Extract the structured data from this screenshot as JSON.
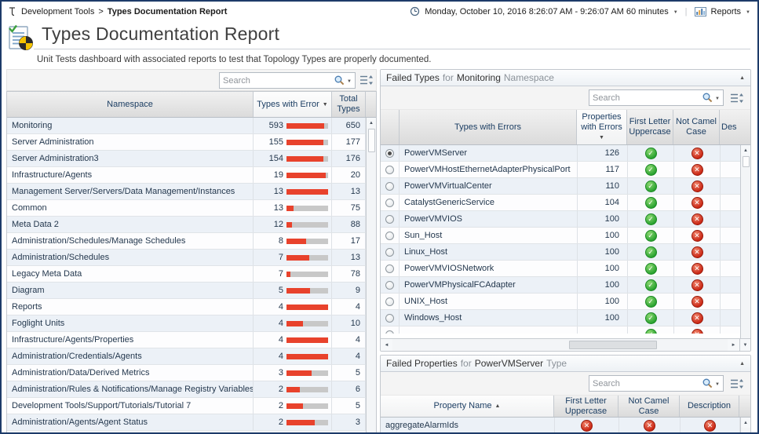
{
  "topbar": {
    "breadcrumb": {
      "parent": "Development Tools",
      "separator": ">",
      "current": "Types Documentation Report"
    },
    "time_range_label": "Monday, October 10, 2016 8:26:07 AM - 9:26:07 AM 60 minutes",
    "reports_label": "Reports"
  },
  "header": {
    "title": "Types Documentation Report",
    "subtitle": "Unit Tests dashboard with associated reports to test that Topology Types are properly documented."
  },
  "status_glyphs": {
    "pass": "✓",
    "fail": "✕"
  },
  "status_colors": {
    "pass": "#27a12e",
    "fail": "#c92513"
  },
  "namespaces_table": {
    "search": {
      "placeholder": "Search"
    },
    "columns": [
      {
        "label": "Namespace",
        "sort": null
      },
      {
        "label": "Types with Error",
        "sort": "desc"
      },
      {
        "label": "Total Types",
        "sort": null
      }
    ],
    "bar_color": "#e8422c",
    "bar_track_color": "#c8c8c8",
    "rows": [
      {
        "namespace": "Monitoring",
        "types_with_error": 593,
        "total_types": 650
      },
      {
        "namespace": "Server Administration",
        "types_with_error": 155,
        "total_types": 177
      },
      {
        "namespace": "Server Administration3",
        "types_with_error": 154,
        "total_types": 176
      },
      {
        "namespace": "Infrastructure/Agents",
        "types_with_error": 19,
        "total_types": 20
      },
      {
        "namespace": "Management Server/Servers/Data Management/Instances",
        "types_with_error": 13,
        "total_types": 13
      },
      {
        "namespace": "Common",
        "types_with_error": 13,
        "total_types": 75
      },
      {
        "namespace": "Meta Data 2",
        "types_with_error": 12,
        "total_types": 88
      },
      {
        "namespace": "Administration/Schedules/Manage Schedules",
        "types_with_error": 8,
        "total_types": 17
      },
      {
        "namespace": "Administration/Schedules",
        "types_with_error": 7,
        "total_types": 13
      },
      {
        "namespace": "Legacy Meta Data",
        "types_with_error": 7,
        "total_types": 78
      },
      {
        "namespace": "Diagram",
        "types_with_error": 5,
        "total_types": 9
      },
      {
        "namespace": "Reports",
        "types_with_error": 4,
        "total_types": 4
      },
      {
        "namespace": "Foglight Units",
        "types_with_error": 4,
        "total_types": 10
      },
      {
        "namespace": "Infrastructure/Agents/Properties",
        "types_with_error": 4,
        "total_types": 4
      },
      {
        "namespace": "Administration/Credentials/Agents",
        "types_with_error": 4,
        "total_types": 4
      },
      {
        "namespace": "Administration/Data/Derived Metrics",
        "types_with_error": 3,
        "total_types": 5
      },
      {
        "namespace": "Administration/Rules & Notifications/Manage Registry Variables",
        "types_with_error": 2,
        "total_types": 6
      },
      {
        "namespace": "Development Tools/Support/Tutorials/Tutorial 7",
        "types_with_error": 2,
        "total_types": 5
      },
      {
        "namespace": "Administration/Agents/Agent Status",
        "types_with_error": 2,
        "total_types": 3
      }
    ]
  },
  "failed_types_panel": {
    "title_parts": [
      {
        "text": "Failed Types",
        "muted": false
      },
      {
        "text": "for",
        "muted": true
      },
      {
        "text": "Monitoring",
        "muted": false
      },
      {
        "text": "Namespace",
        "muted": true
      }
    ],
    "search": {
      "placeholder": "Search"
    },
    "columns": [
      {
        "label": "",
        "sort": null
      },
      {
        "label": "Types with Errors",
        "sort": null
      },
      {
        "label": "Properties with Errors",
        "sort": "desc"
      },
      {
        "label": "First Letter Uppercase",
        "sort": null
      },
      {
        "label": "Not Camel Case",
        "sort": null
      },
      {
        "label": "Des",
        "sort": null
      }
    ],
    "rows": [
      {
        "selected": true,
        "type": "PowerVMServer",
        "properties_with_errors": 126,
        "first_letter_uppercase": "pass",
        "not_camel_case": "fail"
      },
      {
        "selected": false,
        "type": "PowerVMHostEthernetAdapterPhysicalPort",
        "properties_with_errors": 117,
        "first_letter_uppercase": "pass",
        "not_camel_case": "fail"
      },
      {
        "selected": false,
        "type": "PowerVMVirtualCenter",
        "properties_with_errors": 110,
        "first_letter_uppercase": "pass",
        "not_camel_case": "fail"
      },
      {
        "selected": false,
        "type": "CatalystGenericService",
        "properties_with_errors": 104,
        "first_letter_uppercase": "pass",
        "not_camel_case": "fail"
      },
      {
        "selected": false,
        "type": "PowerVMVIOS",
        "properties_with_errors": 100,
        "first_letter_uppercase": "pass",
        "not_camel_case": "fail"
      },
      {
        "selected": false,
        "type": "Sun_Host",
        "properties_with_errors": 100,
        "first_letter_uppercase": "pass",
        "not_camel_case": "fail"
      },
      {
        "selected": false,
        "type": "Linux_Host",
        "properties_with_errors": 100,
        "first_letter_uppercase": "pass",
        "not_camel_case": "fail"
      },
      {
        "selected": false,
        "type": "PowerVMVIOSNetwork",
        "properties_with_errors": 100,
        "first_letter_uppercase": "pass",
        "not_camel_case": "fail"
      },
      {
        "selected": false,
        "type": "PowerVMPhysicalFCAdapter",
        "properties_with_errors": 100,
        "first_letter_uppercase": "pass",
        "not_camel_case": "fail"
      },
      {
        "selected": false,
        "type": "UNIX_Host",
        "properties_with_errors": 100,
        "first_letter_uppercase": "pass",
        "not_camel_case": "fail"
      },
      {
        "selected": false,
        "type": "Windows_Host",
        "properties_with_errors": 100,
        "first_letter_uppercase": "pass",
        "not_camel_case": "fail"
      }
    ],
    "partial_row": {
      "first_letter_uppercase": "pass",
      "not_camel_case": "fail"
    }
  },
  "failed_properties_panel": {
    "title_parts": [
      {
        "text": "Failed Properties",
        "muted": false
      },
      {
        "text": "for",
        "muted": true
      },
      {
        "text": "PowerVMServer",
        "muted": false
      },
      {
        "text": "Type",
        "muted": true
      }
    ],
    "search": {
      "placeholder": "Search"
    },
    "columns": [
      {
        "label": "Property Name",
        "sort": "asc"
      },
      {
        "label": "First Letter Uppercase",
        "sort": null
      },
      {
        "label": "Not Camel Case",
        "sort": null
      },
      {
        "label": "Description",
        "sort": null
      }
    ],
    "rows": [
      {
        "property": "aggregateAlarmIds",
        "first_letter_uppercase": "fail",
        "not_camel_case": "fail",
        "description": "fail"
      }
    ]
  }
}
